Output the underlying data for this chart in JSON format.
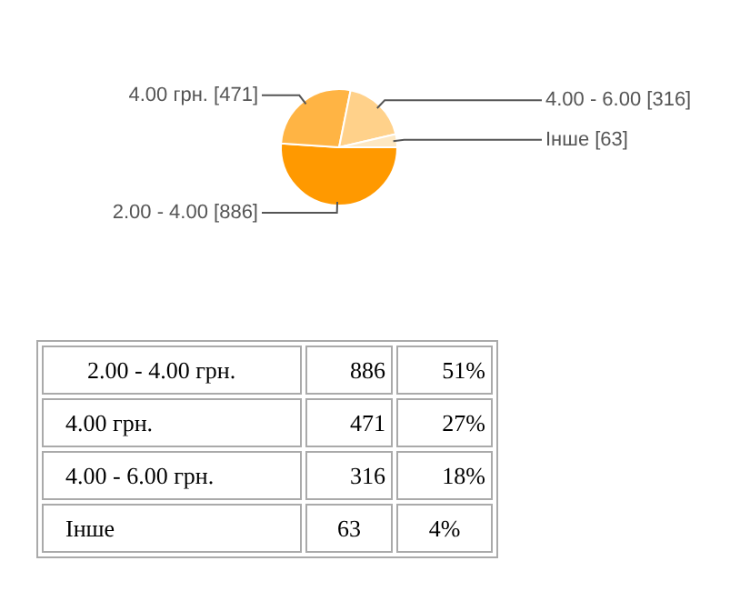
{
  "chart_data": {
    "type": "pie",
    "categories": [
      "2.00 - 4.00 [886]",
      "4.00 грн. [471]",
      "4.00 - 6.00 [316]",
      "Інше [63]"
    ],
    "values": [
      886,
      471,
      316,
      63
    ],
    "colors": [
      "#ff9900",
      "#ffb444",
      "#ffd18a",
      "#fde8c3"
    ],
    "annotations": [
      "2.00 - 4.00 грн.",
      "886",
      "51%",
      "4.00 грн.",
      "471",
      "27%",
      "4.00 - 6.00 грн.",
      "316",
      "18%",
      "Інше",
      "63",
      "4%"
    ],
    "legend": false
  }
}
